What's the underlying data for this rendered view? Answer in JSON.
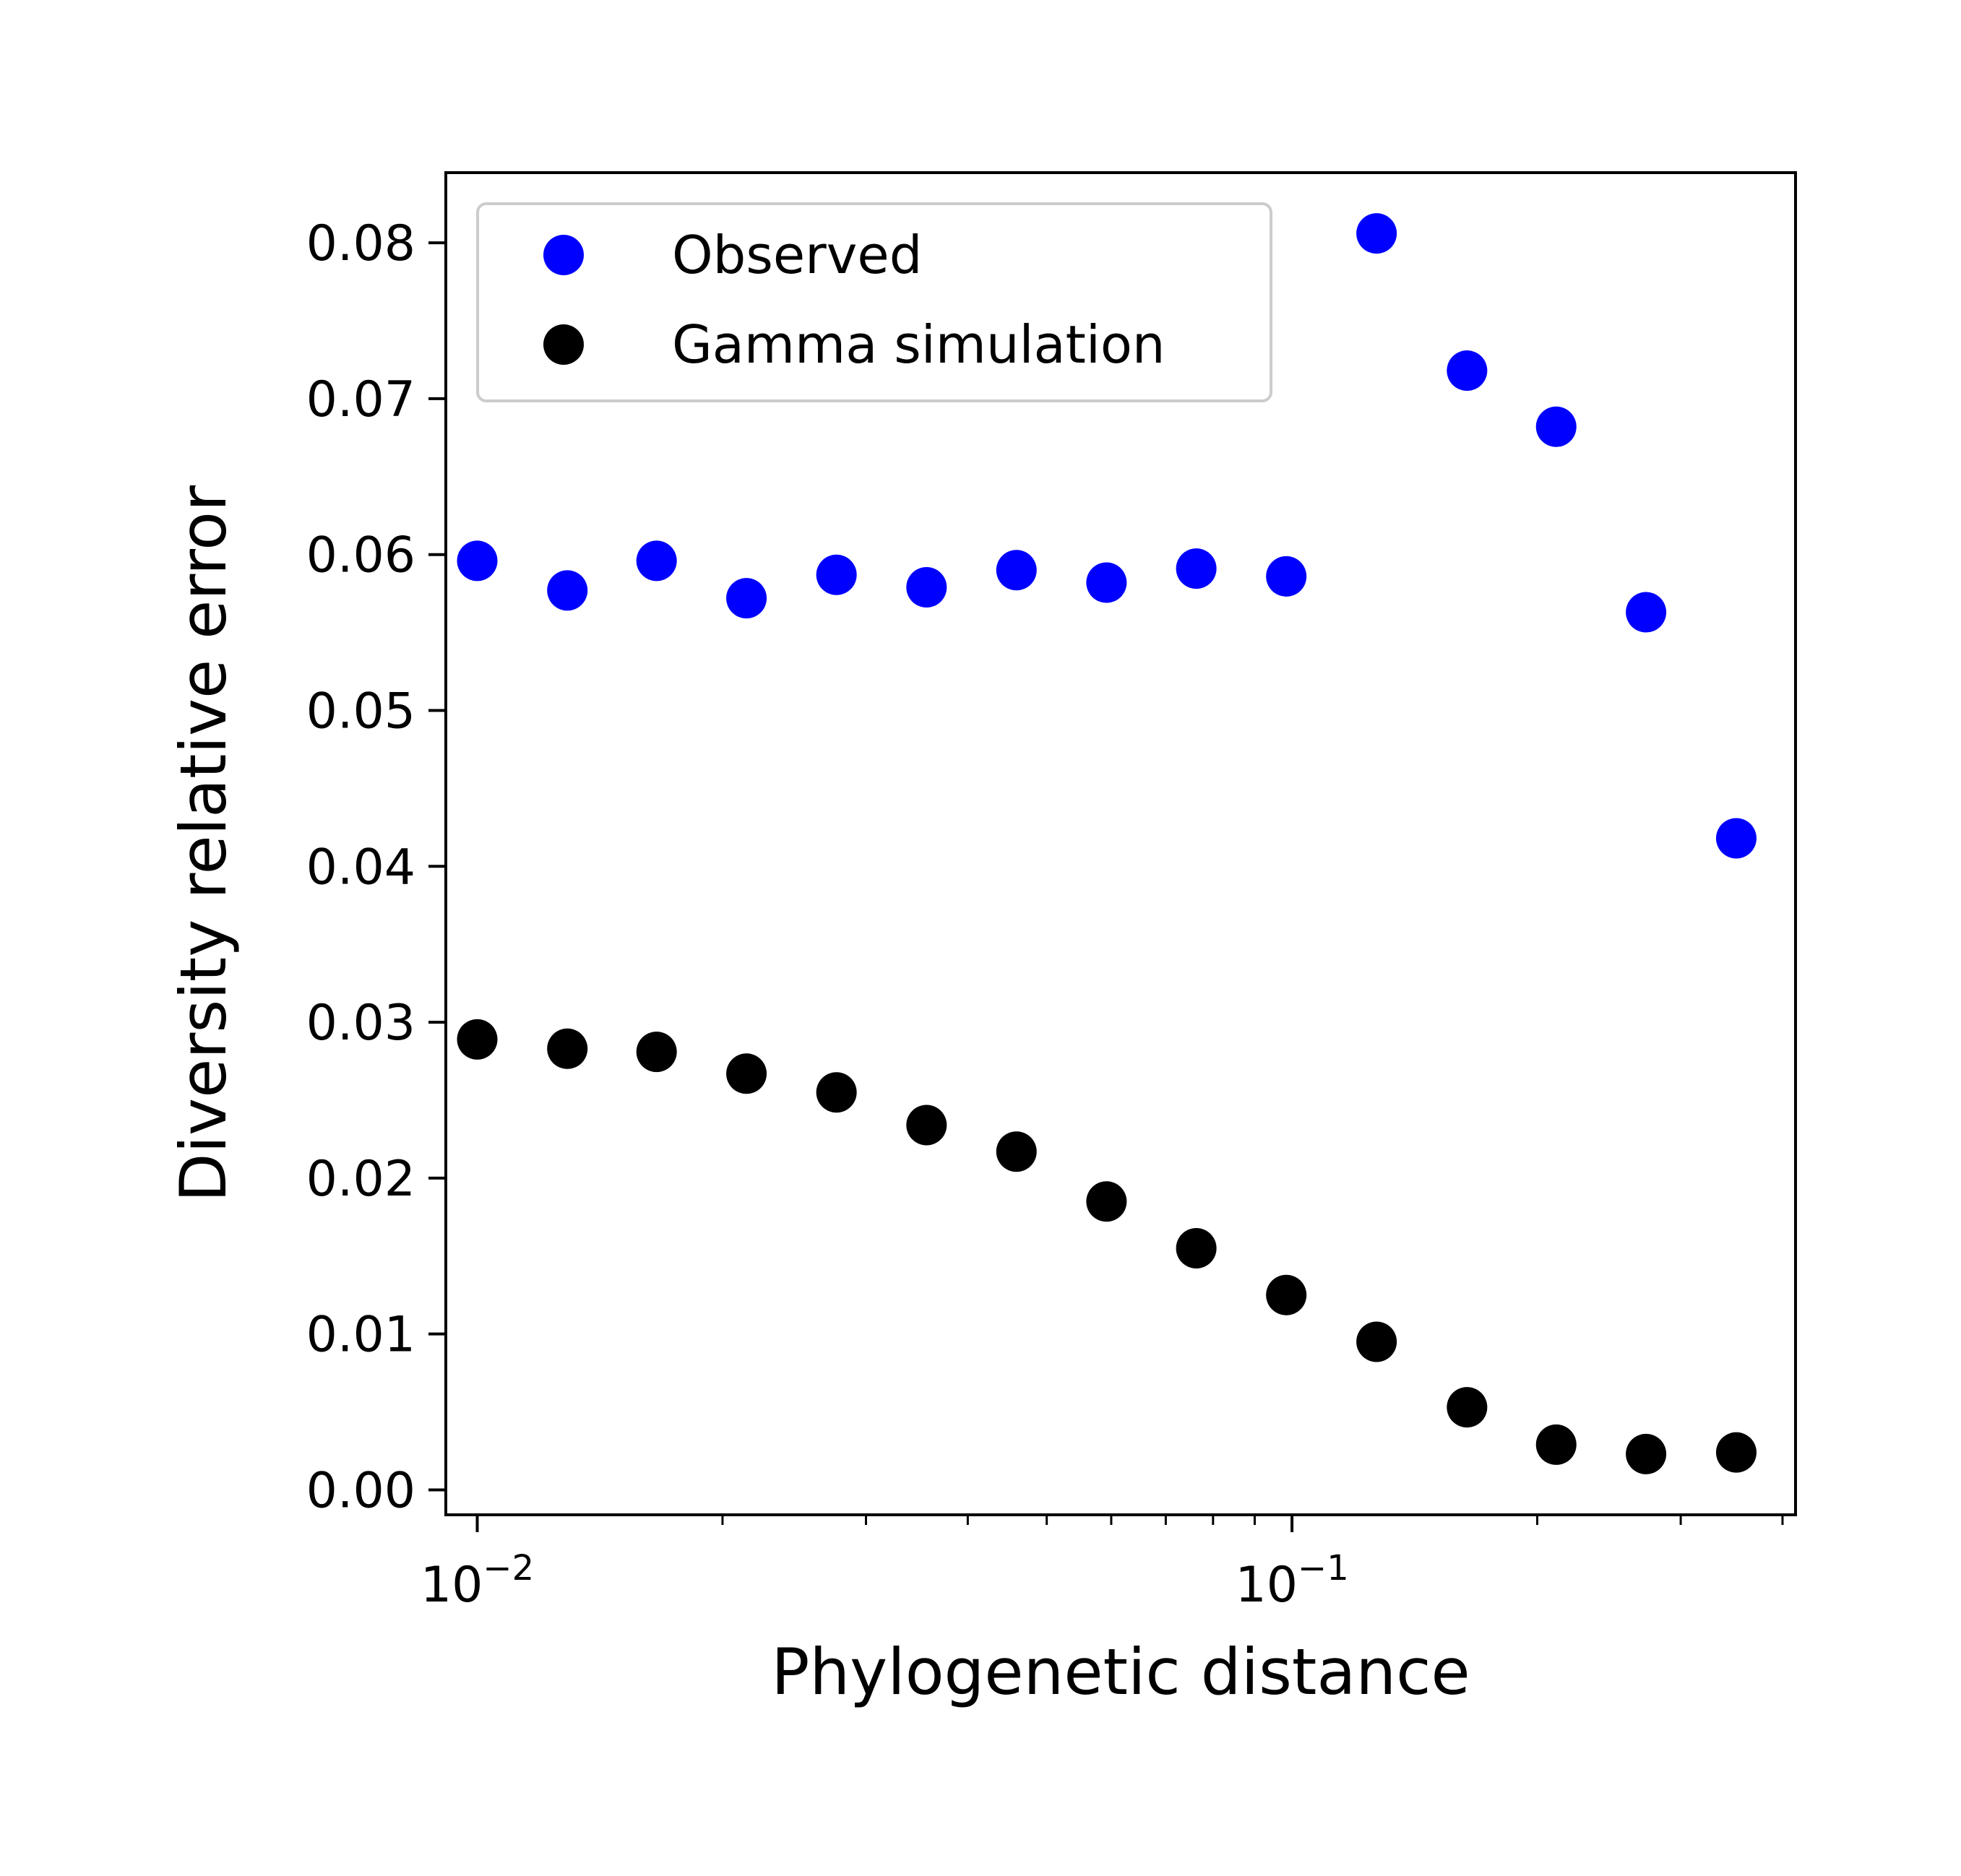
{
  "chart_data": {
    "type": "scatter",
    "xscale": "log",
    "xlabel": "Phylogenetic distance",
    "ylabel": "Diversity relative error",
    "xlim": [
      0.00915,
      0.415
    ],
    "ylim": [
      -0.0016,
      0.0845
    ],
    "x_ticks": [
      {
        "value": 0.01,
        "base": "10",
        "exponent": "−2"
      },
      {
        "value": 0.1,
        "base": "10",
        "exponent": "−1"
      }
    ],
    "y_ticks": [
      {
        "value": 0.0,
        "label": "0.00"
      },
      {
        "value": 0.01,
        "label": "0.01"
      },
      {
        "value": 0.02,
        "label": "0.02"
      },
      {
        "value": 0.03,
        "label": "0.03"
      },
      {
        "value": 0.04,
        "label": "0.04"
      },
      {
        "value": 0.05,
        "label": "0.05"
      },
      {
        "value": 0.06,
        "label": "0.06"
      },
      {
        "value": 0.07,
        "label": "0.07"
      },
      {
        "value": 0.08,
        "label": "0.08"
      }
    ],
    "grid": false,
    "legend_position": "top-left",
    "series": [
      {
        "name": "Observed",
        "color": "#0000ff",
        "points": [
          [
            0.01,
            0.0596
          ],
          [
            0.0129,
            0.0577
          ],
          [
            0.0166,
            0.0596
          ],
          [
            0.0214,
            0.0572
          ],
          [
            0.0276,
            0.0587
          ],
          [
            0.0356,
            0.0579
          ],
          [
            0.0459,
            0.059
          ],
          [
            0.0592,
            0.0582
          ],
          [
            0.0763,
            0.0591
          ],
          [
            0.0984,
            0.0586
          ],
          [
            0.127,
            0.0806
          ],
          [
            0.164,
            0.0718
          ],
          [
            0.211,
            0.0682
          ],
          [
            0.272,
            0.0563
          ],
          [
            0.351,
            0.0418
          ]
        ]
      },
      {
        "name": "Gamma simulation",
        "color": "#000000",
        "points": [
          [
            0.01,
            0.0289
          ],
          [
            0.0129,
            0.0283
          ],
          [
            0.0166,
            0.0281
          ],
          [
            0.0214,
            0.0267
          ],
          [
            0.0276,
            0.0255
          ],
          [
            0.0356,
            0.0234
          ],
          [
            0.0459,
            0.0217
          ],
          [
            0.0592,
            0.0185
          ],
          [
            0.0763,
            0.0155
          ],
          [
            0.0984,
            0.0125
          ],
          [
            0.127,
            0.0095
          ],
          [
            0.164,
            0.0053
          ],
          [
            0.211,
            0.0029
          ],
          [
            0.272,
            0.0023
          ],
          [
            0.351,
            0.0024
          ]
        ]
      }
    ]
  }
}
